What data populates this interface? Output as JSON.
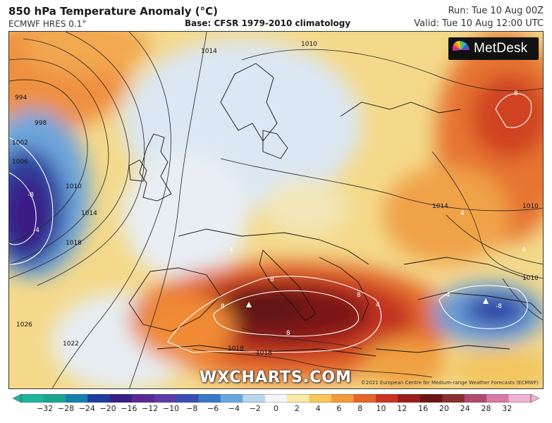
{
  "header": {
    "title": "850 hPa Temperature Anomaly (°C)",
    "model": "ECMWF HRES 0.1°",
    "base": "Base: CFSR 1979-2010 climatology",
    "run": "Run: Tue 10 Aug 00Z",
    "valid": "Valid: Tue 10 Aug 12:00 UTC"
  },
  "map": {
    "logo_text": "MetDesk",
    "logo_icon": "metdesk-fan-icon",
    "watermark": "WXCHARTS.COM",
    "copyright": "©2021 European Centre for Medium-range Weather Forecasts (ECMWF)",
    "isobar_labels": [
      "994",
      "998",
      "1002",
      "1006",
      "1010",
      "1014",
      "1018",
      "1022",
      "1026",
      "1010",
      "1014",
      "1010",
      "1018",
      "1018",
      "1010",
      "1014"
    ],
    "anomaly_labels": [
      "-8",
      "-4",
      "4",
      "8",
      "8",
      "8",
      "4",
      "8",
      "4",
      "-4",
      "-8",
      "4",
      "8"
    ]
  },
  "colorbar": {
    "ticks": [
      "−32",
      "−28",
      "−24",
      "−20",
      "−16",
      "−12",
      "−10",
      "−8",
      "−6",
      "−4",
      "−2",
      "0",
      "2",
      "4",
      "6",
      "8",
      "10",
      "12",
      "16",
      "20",
      "24",
      "28",
      "32"
    ],
    "colors": [
      "#1fb59b",
      "#1aa58f",
      "#167fae",
      "#1d3e9c",
      "#3a1f86",
      "#5a2a90",
      "#5e3ba6",
      "#3a4fb5",
      "#3a78c8",
      "#6aa6dc",
      "#b8d6ee",
      "#f3f6f9",
      "#f7e9a6",
      "#f6c659",
      "#f29a3a",
      "#e6662a",
      "#c93422",
      "#9b1c1c",
      "#6e1414",
      "#8a2e2e",
      "#b04b6c",
      "#d77aa6",
      "#f0b2d2"
    ]
  }
}
